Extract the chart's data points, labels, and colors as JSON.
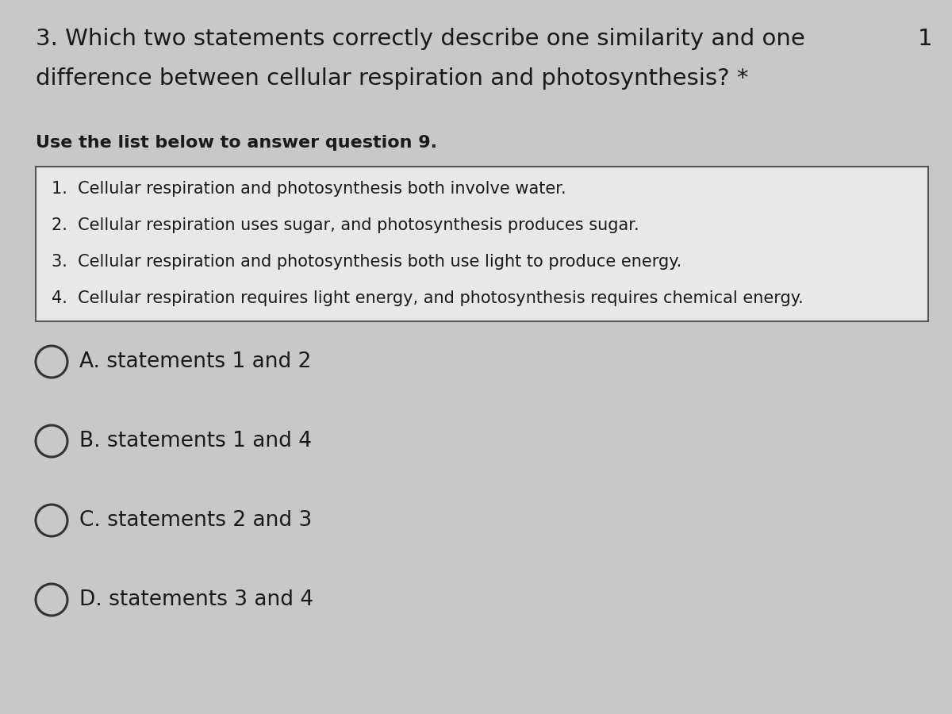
{
  "background_color": "#c8c8c8",
  "question_line1": "3. Which two statements correctly describe one similarity and one",
  "question_line2": "difference between cellular respiration and photosynthesis? *",
  "question_number_top_right": "1",
  "instruction_bold": "Use the list below to answer question 9.",
  "list_items": [
    "1.  Cellular respiration and photosynthesis both involve water.",
    "2.  Cellular respiration uses sugar, and photosynthesis produces sugar.",
    "3.  Cellular respiration and photosynthesis both use light to produce energy.",
    "4.  Cellular respiration requires light energy, and photosynthesis requires chemical energy."
  ],
  "choices": [
    "A. statements 1 and 2",
    "B. statements 1 and 4",
    "C. statements 2 and 3",
    "D. statements 3 and 4"
  ],
  "text_color": "#1a1a1a",
  "box_face_color": "#e8e8e8",
  "box_edge_color": "#555555",
  "circle_color": "#333333",
  "question_fontsize": 21,
  "instruction_fontsize": 16,
  "list_fontsize": 15,
  "choice_fontsize": 19
}
